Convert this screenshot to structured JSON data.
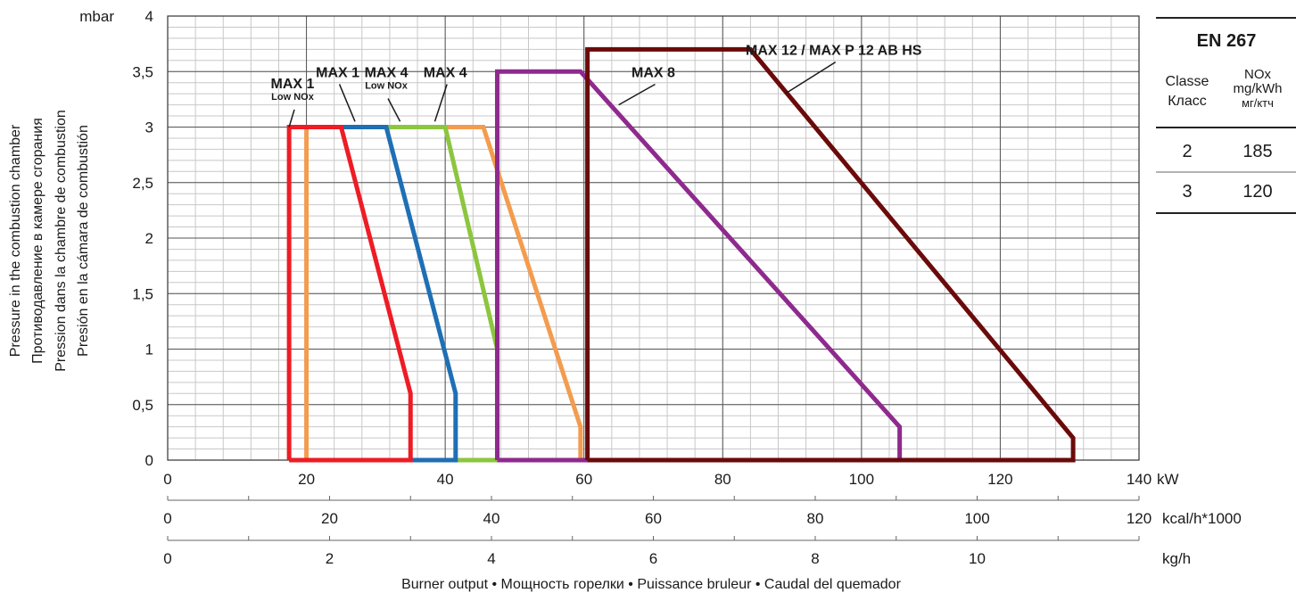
{
  "chart_data": {
    "type": "line",
    "x": {
      "min": 0,
      "max": 140,
      "unit": "kW",
      "ticks": [
        0,
        20,
        40,
        60,
        80,
        100,
        120,
        140
      ],
      "minor_step": 4,
      "tick_labels": [
        "0",
        "20",
        "40",
        "60",
        "80",
        "100",
        "120",
        "140"
      ]
    },
    "y": {
      "min": 0,
      "max": 4,
      "unit": "mbar",
      "ticks": [
        0,
        0.5,
        1,
        1.5,
        2,
        2.5,
        3,
        3.5,
        4
      ],
      "minor_step": 0.1,
      "tick_labels": [
        "0",
        "0,5",
        "1",
        "1,5",
        "2",
        "2,5",
        "3",
        "3,5",
        "4"
      ]
    },
    "ylabel_lines": [
      "Pressure in the combustion chamber",
      "Противодавление в камере сгорания",
      "Pression dans la chambre de combustion",
      "Presión en la cámara de combustión"
    ],
    "xlabel": "Burner output • Мощность горелки • Puissance bruleur • Caudal del quemador",
    "secondary_axes": [
      {
        "unit": "kcal/h*1000",
        "max_value": 120,
        "span_kw": 140,
        "minor_step": 10,
        "tick_values": [
          0,
          20,
          40,
          60,
          80,
          100,
          120
        ],
        "tick_labels": [
          "0",
          "20",
          "40",
          "60",
          "80",
          "100",
          "120"
        ]
      },
      {
        "unit": "kg/h",
        "max_value": 12,
        "span_kw": 140,
        "minor_step": 1,
        "tick_values": [
          0,
          2,
          4,
          6,
          8,
          10
        ],
        "tick_labels": [
          "0",
          "2",
          "4",
          "6",
          "8",
          "10"
        ]
      }
    ],
    "series": [
      {
        "name": "MAX 4",
        "color": "#f39c4f",
        "points": [
          [
            20,
            0
          ],
          [
            20,
            3
          ],
          [
            45.5,
            3
          ],
          [
            59.5,
            0.3
          ],
          [
            59.5,
            0
          ]
        ]
      },
      {
        "name": "MAX 4 Low NOx",
        "color": "#8cc63f",
        "points": [
          [
            35,
            0
          ],
          [
            47.5,
            0
          ],
          [
            47.5,
            1
          ],
          [
            40,
            3
          ],
          [
            30.5,
            3
          ]
        ]
      },
      {
        "name": "MAX 1",
        "color": "#1f6fb5",
        "points": [
          [
            35,
            0
          ],
          [
            41.5,
            0
          ],
          [
            41.5,
            0.6
          ],
          [
            31.5,
            3
          ],
          [
            25,
            3
          ]
        ]
      },
      {
        "name": "MAX 8",
        "color": "#8e2a8e",
        "points": [
          [
            47.5,
            0
          ],
          [
            47.5,
            3.5
          ],
          [
            59.5,
            3.5
          ],
          [
            105.5,
            0.3
          ],
          [
            105.5,
            0
          ],
          [
            47.5,
            0
          ]
        ]
      },
      {
        "name": "MAX 12 / MAX P 12 AB HS",
        "color": "#6b0a0a",
        "points": [
          [
            60.5,
            0
          ],
          [
            60.5,
            3.7
          ],
          [
            84,
            3.7
          ],
          [
            130.5,
            0.2
          ],
          [
            130.5,
            0
          ],
          [
            60.5,
            0
          ]
        ]
      },
      {
        "name": "MAX 1 Low NOx",
        "color": "#ee1c25",
        "points": [
          [
            17.5,
            0
          ],
          [
            17.5,
            3
          ],
          [
            25,
            3
          ],
          [
            35,
            0.6
          ],
          [
            35,
            0
          ],
          [
            17.5,
            0
          ]
        ]
      }
    ],
    "annotations": [
      {
        "text": "MAX 1",
        "sub": "Low NOx",
        "x": 18,
        "y": 3.35,
        "lx": 17.5,
        "ly": 3
      },
      {
        "text": "MAX 1",
        "sub": "",
        "x": 24.5,
        "y": 3.45,
        "lx": 27,
        "ly": 3.05
      },
      {
        "text": "MAX 4",
        "sub": "Low NOx",
        "x": 31.5,
        "y": 3.45,
        "lx": 33.5,
        "ly": 3.05
      },
      {
        "text": "MAX 4",
        "sub": "",
        "x": 40,
        "y": 3.45,
        "lx": 38.5,
        "ly": 3.05
      },
      {
        "text": "MAX 8",
        "sub": "",
        "x": 70,
        "y": 3.45,
        "lx": 65,
        "ly": 3.2
      },
      {
        "text": "MAX 12 / MAX P 12 AB HS",
        "sub": "",
        "x": 96,
        "y": 3.65,
        "lx": 89,
        "ly": 3.3
      }
    ]
  },
  "table": {
    "title": "EN 267",
    "col1_header_lines": [
      "Classe",
      "Класс"
    ],
    "col2_header_lines": [
      "NOx",
      "mg/kWh",
      "мг/ктч"
    ],
    "rows": [
      [
        "2",
        "185"
      ],
      [
        "3",
        "120"
      ]
    ]
  }
}
